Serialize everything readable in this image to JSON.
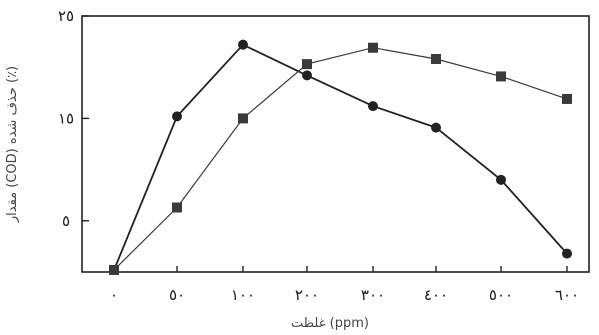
{
  "chart_data": {
    "type": "line",
    "xlabel": "غلظت (ppm)",
    "ylabel": "مقدار (COD) حذف شده (٪)",
    "x_ticks": [
      "٠",
      "٥٠",
      "١٠٠",
      "٢٠٠",
      "٣٠٠",
      "٤٠٠",
      "٥٠٠",
      "٦٠٠"
    ],
    "y_ticks": [
      "٥",
      "١٥",
      "٢٥"
    ],
    "x_tick_values": [
      0,
      50,
      100,
      200,
      300,
      400,
      500,
      600
    ],
    "y_tick_values": [
      5,
      15,
      25
    ],
    "ylim": [
      0,
      25
    ],
    "grid": false,
    "series": [
      {
        "marker": "circle",
        "color": "#222222",
        "points": [
          [
            0,
            0.2
          ],
          [
            50,
            15.2
          ],
          [
            100,
            22.2
          ],
          [
            200,
            19.2
          ],
          [
            300,
            16.2
          ],
          [
            400,
            14.1
          ],
          [
            500,
            9.0
          ],
          [
            600,
            1.8
          ]
        ]
      },
      {
        "marker": "square",
        "color": "#3a3a3a",
        "points": [
          [
            0,
            0.2
          ],
          [
            50,
            6.3
          ],
          [
            100,
            15.0
          ],
          [
            200,
            20.3
          ],
          [
            300,
            21.9
          ],
          [
            400,
            20.8
          ],
          [
            500,
            19.1
          ],
          [
            600,
            16.9
          ]
        ]
      }
    ]
  }
}
